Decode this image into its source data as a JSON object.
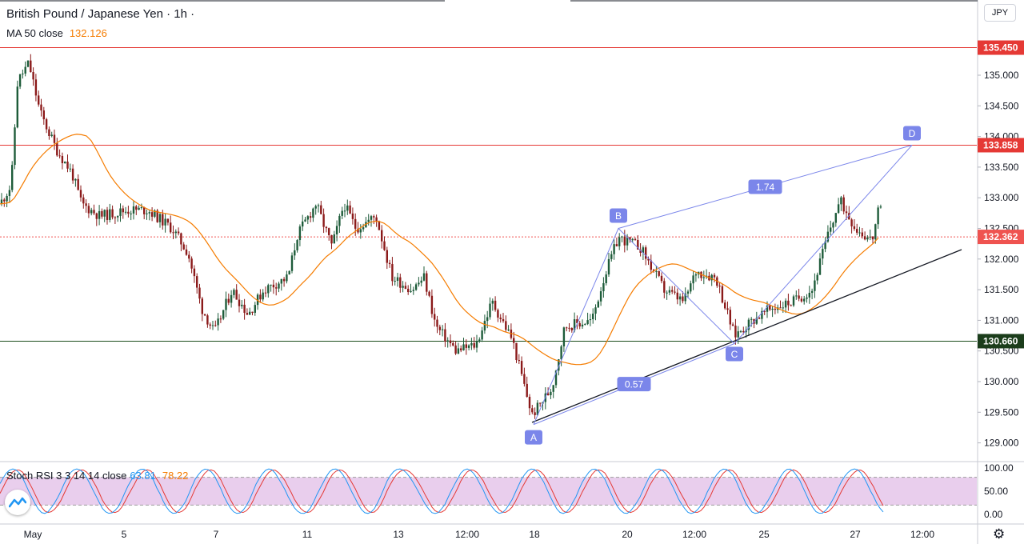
{
  "header": {
    "symbol_title": "British Pound / Japanese Yen · 1h ·",
    "ma_label": "MA 50 close",
    "ma_value": "132.126",
    "currency": "JPY"
  },
  "stoch": {
    "label": "Stoch RSI 3 3 14 14 close",
    "k_value": "63.81",
    "d_value": "78.22",
    "axis_ticks": [
      "100.00",
      "50.00",
      "0.00"
    ],
    "band_upper": 80,
    "band_lower": 20
  },
  "price_axis": {
    "ticks": [
      "135.000",
      "134.500",
      "134.000",
      "133.500",
      "133.000",
      "132.500",
      "132.000",
      "131.500",
      "131.000",
      "130.500",
      "130.000",
      "129.500",
      "129.000"
    ],
    "tick_values": [
      135.0,
      134.5,
      134.0,
      133.5,
      133.0,
      132.5,
      132.0,
      131.5,
      131.0,
      130.5,
      130.0,
      129.5,
      129.0
    ],
    "labels": [
      {
        "text": "135.450",
        "value": 135.45,
        "color": "#e53935"
      },
      {
        "text": "133.858",
        "value": 133.858,
        "color": "#e53935"
      },
      {
        "text": "132.362",
        "value": 132.362,
        "color": "#ef5350"
      },
      {
        "text": "130.660",
        "value": 130.66,
        "color": "#1b3d1b"
      }
    ]
  },
  "time_axis": {
    "ticks": [
      "May",
      "5",
      "7",
      "11",
      "13",
      "12:00",
      "18",
      "20",
      "12:00",
      "25",
      "27",
      "12:00"
    ]
  },
  "levels": [
    {
      "name": "resistance-135-450",
      "value": 135.45,
      "color": "#e53935"
    },
    {
      "name": "resistance-133-858",
      "value": 133.858,
      "color": "#e53935"
    },
    {
      "name": "current-price",
      "value": 132.362,
      "color": "#ef5350",
      "dotted": true
    },
    {
      "name": "support-130-660",
      "value": 130.66,
      "color": "#1b4d1b"
    }
  ],
  "pattern": {
    "points": [
      {
        "label": "A",
        "value": 129.3
      },
      {
        "label": "B",
        "value": 132.5
      },
      {
        "label": "C",
        "value": 130.62
      },
      {
        "label": "D",
        "value": 133.858
      }
    ],
    "ratios": [
      "1.74",
      "0.57"
    ],
    "color": "#7b86ea"
  },
  "colors": {
    "up": "#1e5c3a",
    "down": "#8b1a1a",
    "ma": "#f57c00",
    "stoch_k": "#2196f3",
    "stoch_d": "#e53935",
    "stoch_band": "#e1bee7"
  }
}
